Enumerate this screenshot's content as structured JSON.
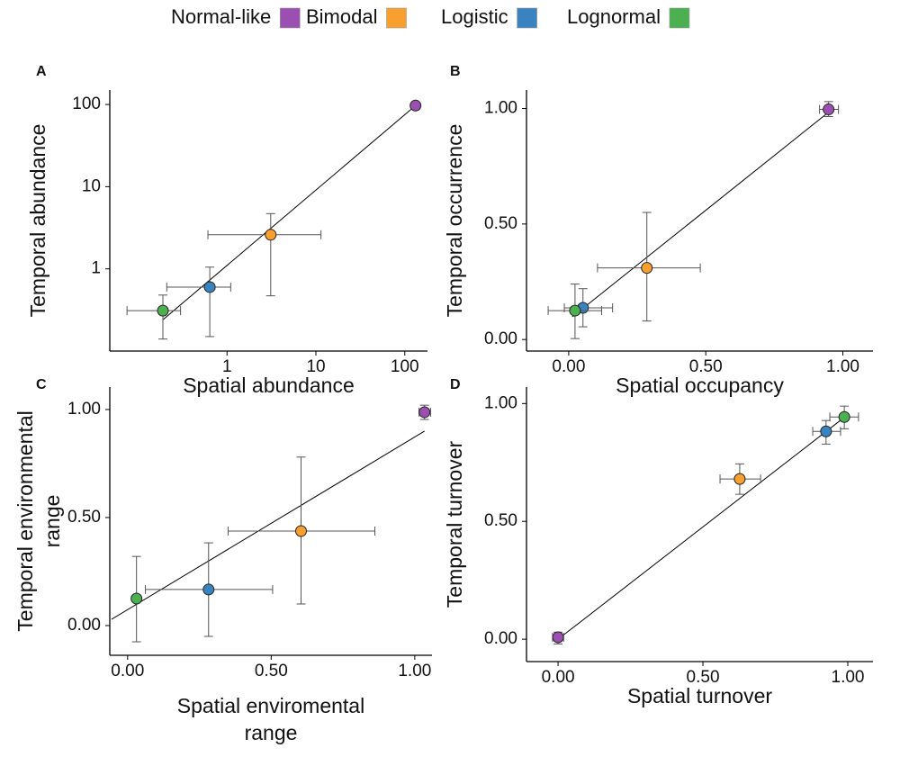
{
  "chart_data": [
    {
      "type": "scatter",
      "panel": "A",
      "xlabel": "Spatial abundance",
      "ylabel": "Temporal abundance",
      "xscale": "log",
      "yscale": "log",
      "xlim": [
        0.048,
        180
      ],
      "ylim": [
        0.1,
        150
      ],
      "xticks": [
        1,
        10,
        100
      ],
      "yticks": [
        1,
        10,
        100
      ],
      "fit": {
        "x": [
          0.19,
          132
        ],
        "y": [
          0.24,
          97
        ]
      },
      "series": [
        {
          "name": "Normal-like",
          "color": "#9b4fb0",
          "x": 132,
          "y": 97
        },
        {
          "name": "Bimodal",
          "color": "#f7a030",
          "x": 3.1,
          "y": 2.6,
          "x_range": [
            0.61,
            11.4
          ],
          "y_range": [
            0.47,
            4.7
          ]
        },
        {
          "name": "Logistic",
          "color": "#3a83c1",
          "x": 0.64,
          "y": 0.6,
          "x_range": [
            0.21,
            1.1
          ],
          "y_range": [
            0.15,
            1.05
          ]
        },
        {
          "name": "Lognormal",
          "color": "#4caf50",
          "x": 0.19,
          "y": 0.31,
          "x_range": [
            0.075,
            0.3
          ],
          "y_range": [
            0.14,
            0.48
          ]
        }
      ]
    },
    {
      "type": "scatter",
      "panel": "B",
      "xlabel": "Spatial occupancy",
      "ylabel": "Temporal occurrence",
      "xlim": [
        -0.154,
        1.11
      ],
      "ylim": [
        -0.05,
        1.08
      ],
      "xticks": [
        {
          "value": 0,
          "label": "0.00"
        },
        {
          "value": 0.5,
          "label": "0.50"
        },
        {
          "value": 1,
          "label": "1.00"
        }
      ],
      "yticks": [
        {
          "value": 0,
          "label": "0.00"
        },
        {
          "value": 0.5,
          "label": "0.50"
        },
        {
          "value": 1,
          "label": "1.00"
        }
      ],
      "fit": {
        "x": [
          0.013,
          0.948
        ],
        "y": [
          0.098,
          0.984
        ]
      },
      "series": [
        {
          "name": "Normal-like",
          "color": "#9b4fb0",
          "x": 0.948,
          "y": 0.996,
          "x_range": [
            0.915,
            0.984
          ],
          "y_range": [
            0.965,
            1.03
          ]
        },
        {
          "name": "Bimodal",
          "color": "#f7a030",
          "x": 0.285,
          "y": 0.31,
          "x_range": [
            0.105,
            0.48
          ],
          "y_range": [
            0.08,
            0.55
          ]
        },
        {
          "name": "Logistic",
          "color": "#3a83c1",
          "x": 0.052,
          "y": 0.137,
          "x_range": [
            -0.016,
            0.16
          ],
          "y_range": [
            0.055,
            0.22
          ]
        },
        {
          "name": "Lognormal",
          "color": "#4caf50",
          "x": 0.023,
          "y": 0.125,
          "x_range": [
            -0.075,
            0.12
          ],
          "y_range": [
            0.004,
            0.24
          ]
        }
      ]
    },
    {
      "type": "scatter",
      "panel": "C",
      "xlabel": [
        "Spatial enviromental",
        "range"
      ],
      "ylabel": [
        "Temporal environmental",
        "range"
      ],
      "xlim": [
        -0.062,
        1.06
      ],
      "ylim": [
        -0.1375,
        1.104
      ],
      "xticks": [
        {
          "value": 0,
          "label": "0.00"
        },
        {
          "value": 0.5,
          "label": "0.50"
        },
        {
          "value": 1,
          "label": "1.00"
        }
      ],
      "yticks": [
        {
          "value": 0,
          "label": "0.00"
        },
        {
          "value": 0.5,
          "label": "0.50"
        },
        {
          "value": 1,
          "label": "1.00"
        }
      ],
      "fit": {
        "x": [
          -0.056,
          1.034
        ],
        "y": [
          0.029,
          0.9
        ]
      },
      "series": [
        {
          "name": "Normal-like",
          "color": "#9b4fb0",
          "x": 1.034,
          "y": 0.9875,
          "x_range": [
            1.015,
            1.055
          ],
          "y_range": [
            0.954,
            1.02
          ]
        },
        {
          "name": "Bimodal",
          "color": "#f7a030",
          "x": 0.604,
          "y": 0.4375,
          "x_range": [
            0.35,
            0.861
          ],
          "y_range": [
            0.1,
            0.78
          ]
        },
        {
          "name": "Logistic",
          "color": "#3a83c1",
          "x": 0.282,
          "y": 0.167,
          "x_range": [
            0.062,
            0.505
          ],
          "y_range": [
            -0.05,
            0.383
          ]
        },
        {
          "name": "Lognormal",
          "color": "#4caf50",
          "x": 0.031,
          "y": 0.125,
          "y_range": [
            -0.075,
            0.32
          ]
        }
      ]
    },
    {
      "type": "scatter",
      "panel": "D",
      "xlabel": "Spatial turnover",
      "ylabel": "Temporal turnover",
      "xlim": [
        -0.109,
        1.087
      ],
      "ylim": [
        -0.095,
        1.07
      ],
      "xticks": [
        {
          "value": 0,
          "label": "0.00"
        },
        {
          "value": 0.5,
          "label": "0.50"
        },
        {
          "value": 1,
          "label": "1.00"
        }
      ],
      "yticks": [
        {
          "value": 0,
          "label": "0.00"
        },
        {
          "value": 0.5,
          "label": "0.50"
        },
        {
          "value": 1,
          "label": "1.00"
        }
      ],
      "fit": {
        "x": [
          0,
          0.994
        ],
        "y": [
          0,
          0.947
        ]
      },
      "series": [
        {
          "name": "Normal-like",
          "color": "#9b4fb0",
          "x": 0,
          "y": 0.008,
          "x_range": [
            -0.019,
            0.019
          ],
          "y_range": [
            -0.02,
            0.03
          ]
        },
        {
          "name": "Bimodal",
          "color": "#f7a030",
          "x": 0.627,
          "y": 0.68,
          "x_range": [
            0.559,
            0.699
          ],
          "y_range": [
            0.615,
            0.744
          ]
        },
        {
          "name": "Logistic",
          "color": "#3a83c1",
          "x": 0.925,
          "y": 0.882,
          "x_range": [
            0.879,
            0.975
          ],
          "y_range": [
            0.828,
            0.928
          ]
        },
        {
          "name": "Lognormal",
          "color": "#4caf50",
          "x": 0.988,
          "y": 0.943,
          "x_range": [
            0.938,
            1.037
          ],
          "y_range": [
            0.893,
            0.989
          ]
        }
      ]
    }
  ]
}
